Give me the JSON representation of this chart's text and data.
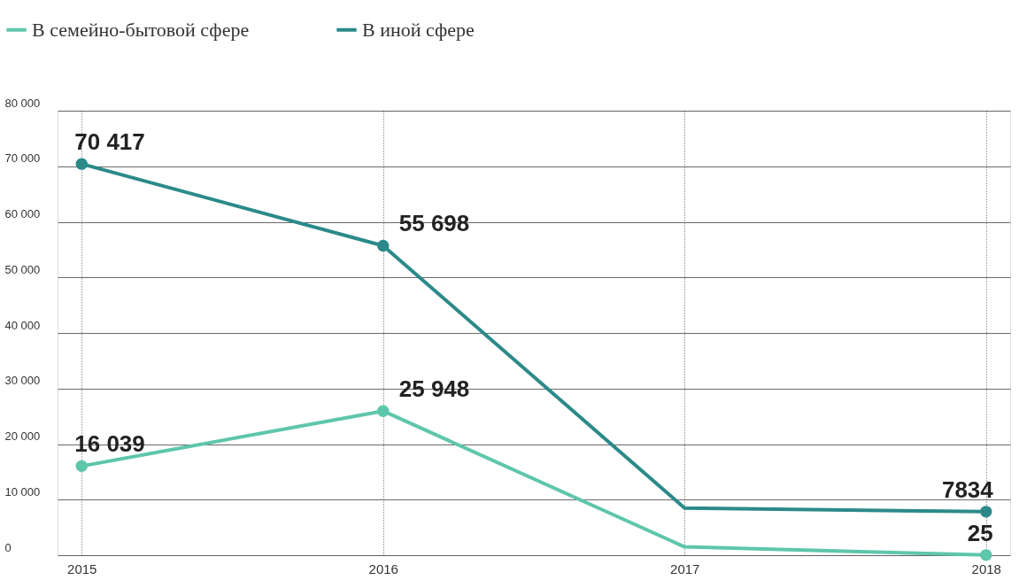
{
  "chart_data": {
    "type": "line",
    "categories": [
      "2015",
      "2016",
      "2017",
      "2018"
    ],
    "series": [
      {
        "name": "В семейно-бытовой сфере",
        "color": "#5ec6aa",
        "values": [
          16039,
          25948,
          1500,
          25
        ],
        "value_labels": [
          "16 039",
          "25 948",
          null,
          "25"
        ]
      },
      {
        "name": "В иной сфере",
        "color": "#2b8a89",
        "values": [
          70417,
          55698,
          8500,
          7834
        ],
        "value_labels": [
          "70 417",
          "55 698",
          null,
          "7834"
        ]
      }
    ],
    "ylim": [
      0,
      80000
    ],
    "yticks": [
      0,
      {
        "value": 10000,
        "label": "10 000"
      },
      {
        "value": 20000,
        "label": "20 000"
      },
      {
        "value": 30000,
        "label": "30 000"
      },
      {
        "value": 40000,
        "label": "40 000"
      },
      {
        "value": 50000,
        "label": "50 000"
      },
      {
        "value": 60000,
        "label": "60 000"
      },
      {
        "value": 70000,
        "label": "70 000"
      },
      {
        "value": 80000,
        "label": "80 000"
      }
    ],
    "grid": true,
    "legend": "top left",
    "marker": "circle",
    "line_style": "solid"
  }
}
